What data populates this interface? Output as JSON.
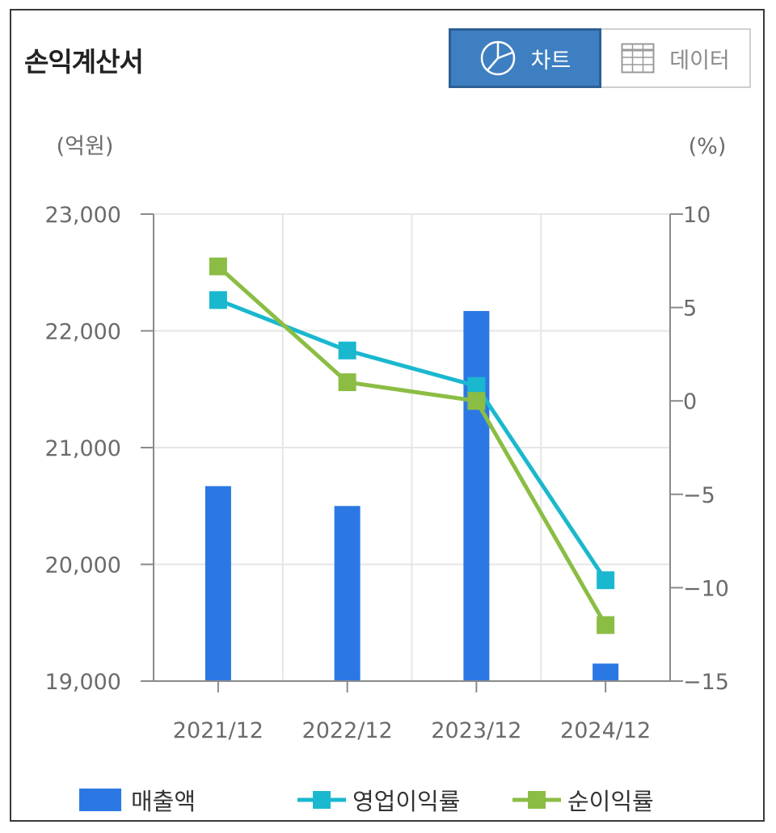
{
  "header": {
    "title": "손익계산서"
  },
  "toggle": {
    "chart_label": "차트",
    "data_label": "데이터"
  },
  "units": {
    "left": "(억원)",
    "right": "(%)"
  },
  "colors": {
    "revenue": "#2b78e4",
    "op_margin": "#1ab8cf",
    "net_margin": "#8bbd44"
  },
  "chart_data": {
    "type": "bar",
    "title": "손익계산서",
    "categories": [
      "2021/12",
      "2022/12",
      "2023/12",
      "2024/12"
    ],
    "left_axis": {
      "label": "(억원)",
      "ylim": [
        19000,
        23000
      ],
      "ticks": [
        19000,
        20000,
        21000,
        22000,
        23000
      ],
      "tick_labels": [
        "19,000",
        "20,000",
        "21,000",
        "22,000",
        "23,000"
      ]
    },
    "right_axis": {
      "label": "(%)",
      "ylim": [
        -15,
        10
      ],
      "ticks": [
        -15,
        -10,
        -5,
        0,
        5,
        10
      ],
      "tick_labels": [
        "-15",
        "-10",
        "-5",
        "0",
        "5",
        "10"
      ]
    },
    "series": [
      {
        "name": "매출액",
        "type": "bar",
        "axis": "left",
        "values": [
          20670,
          20500,
          22170,
          19150
        ]
      },
      {
        "name": "영업이익률",
        "type": "line",
        "axis": "right",
        "values": [
          5.4,
          2.7,
          0.8,
          -9.6
        ]
      },
      {
        "name": "순이익률",
        "type": "line",
        "axis": "right",
        "values": [
          7.2,
          1.0,
          0.0,
          -12.0
        ]
      }
    ],
    "legend": [
      "매출액",
      "영업이익률",
      "순이익률"
    ],
    "legend_position": "bottom",
    "grid": true
  }
}
